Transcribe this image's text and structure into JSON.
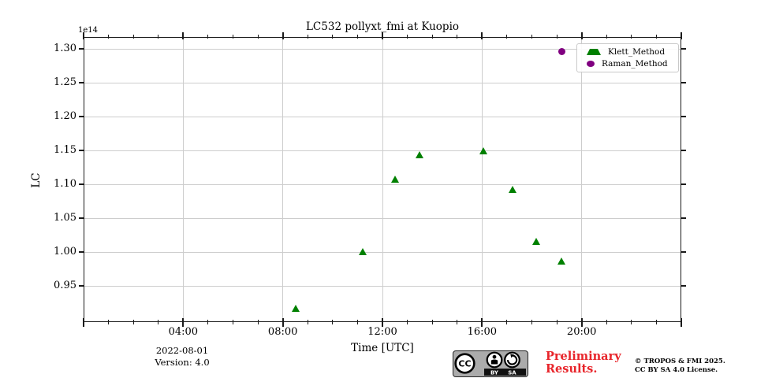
{
  "figure": {
    "title": "LC532 pollyxt_fmi at Kuopio"
  },
  "chart_data": {
    "type": "scatter",
    "title": "LC532 pollyxt_fmi at Kuopio",
    "xlabel": "Time [UTC]",
    "ylabel": "LC",
    "y_offset_multiplier": "1e14",
    "grid": true,
    "legend_position": "upper right",
    "x_axis": {
      "unit": "hours_utc",
      "range": [
        0,
        24
      ],
      "major_tick_hours": [
        4,
        8,
        12,
        16,
        20
      ],
      "major_tick_labels": [
        "04:00",
        "08:00",
        "12:00",
        "16:00",
        "20:00"
      ],
      "minor_tick_interval_hours": 1
    },
    "y_axis": {
      "range_1e14": [
        0.897,
        1.318
      ],
      "major_ticks_1e14": [
        0.95,
        1.0,
        1.05,
        1.1,
        1.15,
        1.2,
        1.25,
        1.3
      ]
    },
    "series": [
      {
        "name": "Klett_Method",
        "marker": "triangle",
        "color": "#008000",
        "points": [
          {
            "hour": 8.52,
            "lc_1e14": 0.917
          },
          {
            "hour": 11.21,
            "lc_1e14": 1.001
          },
          {
            "hour": 12.51,
            "lc_1e14": 1.107
          },
          {
            "hour": 13.49,
            "lc_1e14": 1.144
          },
          {
            "hour": 16.05,
            "lc_1e14": 1.149
          },
          {
            "hour": 17.22,
            "lc_1e14": 1.092
          },
          {
            "hour": 18.17,
            "lc_1e14": 1.016
          },
          {
            "hour": 19.18,
            "lc_1e14": 0.986
          }
        ]
      },
      {
        "name": "Raman_Method",
        "marker": "circle",
        "color": "#800080",
        "points": [
          {
            "hour": 19.2,
            "lc_1e14": 1.296
          }
        ]
      }
    ]
  },
  "footer": {
    "date": "2022-08-01",
    "version": "Version: 4.0",
    "preliminary_line1": "Preliminary",
    "preliminary_line2": "Results.",
    "preliminary_color": "#e8252b",
    "copyright_line1": "© TROPOS & FMI 2025.",
    "copyright_line2": "CC BY SA 4.0 License.",
    "badge": {
      "cc": "CC",
      "by": "BY",
      "sa": "SA"
    }
  }
}
